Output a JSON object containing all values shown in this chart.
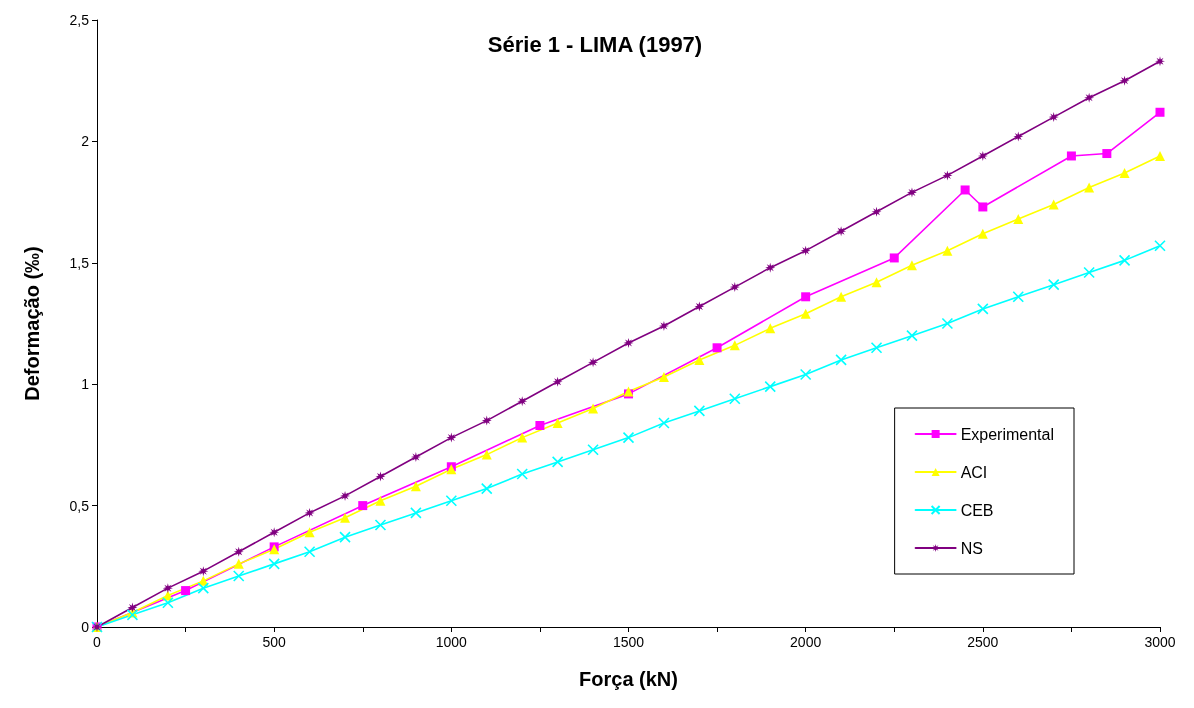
{
  "chart_data": {
    "type": "line",
    "title": "Série 1 - LIMA (1997)",
    "xlabel": "Força (kN)",
    "ylabel": "Deformação (‰)",
    "xlim": [
      0,
      3000
    ],
    "xticks": [
      0,
      {
        "value": 250,
        "label": null
      },
      500,
      {
        "value": 750,
        "label": null
      },
      1000,
      {
        "value": 1250,
        "label": null
      },
      1500,
      {
        "value": 1750,
        "label": null
      },
      2000,
      {
        "value": 2250,
        "label": null
      },
      2500,
      {
        "value": 2750,
        "label": null
      },
      3000
    ],
    "ylim": [
      0,
      2.5
    ],
    "yticks": [
      0,
      {
        "value": 0.5,
        "label": "0,5"
      },
      1,
      {
        "value": 1.5,
        "label": "1,5"
      },
      2,
      {
        "value": 2.5,
        "label": "2,5"
      }
    ],
    "grid": false,
    "legend": "right",
    "line_style": "solid",
    "series": [
      {
        "name": "Experimental",
        "color": "#ff00ff",
        "marker": "square",
        "x": [
          0,
          250,
          500,
          750,
          1000,
          1250,
          1500,
          1750,
          2000,
          2250,
          2450,
          2500,
          2750,
          2850,
          3000
        ],
        "values": [
          0,
          0.15,
          0.33,
          0.5,
          0.66,
          0.83,
          0.96,
          1.15,
          1.36,
          1.52,
          1.8,
          1.73,
          1.94,
          1.95,
          2.12
        ]
      },
      {
        "name": "ACI",
        "color": "#ffff00",
        "marker": "triangle",
        "x": [
          0,
          100,
          200,
          300,
          400,
          500,
          600,
          700,
          800,
          900,
          1000,
          1100,
          1200,
          1300,
          1400,
          1500,
          1600,
          1700,
          1800,
          1900,
          2000,
          2100,
          2200,
          2300,
          2400,
          2500,
          2600,
          2700,
          2800,
          2900,
          3000
        ],
        "values": [
          0,
          0.06,
          0.13,
          0.19,
          0.26,
          0.32,
          0.39,
          0.45,
          0.52,
          0.58,
          0.65,
          0.71,
          0.78,
          0.84,
          0.9,
          0.97,
          1.03,
          1.1,
          1.16,
          1.23,
          1.29,
          1.36,
          1.42,
          1.49,
          1.55,
          1.62,
          1.68,
          1.74,
          1.81,
          1.87,
          1.94
        ]
      },
      {
        "name": "CEB",
        "color": "#00ffff",
        "marker": "cross",
        "x": [
          0,
          100,
          200,
          300,
          400,
          500,
          600,
          700,
          800,
          900,
          1000,
          1100,
          1200,
          1300,
          1400,
          1500,
          1600,
          1700,
          1800,
          1900,
          2000,
          2100,
          2200,
          2300,
          2400,
          2500,
          2600,
          2700,
          2800,
          2900,
          3000
        ],
        "values": [
          0,
          0.05,
          0.1,
          0.16,
          0.21,
          0.26,
          0.31,
          0.37,
          0.42,
          0.47,
          0.52,
          0.57,
          0.63,
          0.68,
          0.73,
          0.78,
          0.84,
          0.89,
          0.94,
          0.99,
          1.04,
          1.1,
          1.15,
          1.2,
          1.25,
          1.31,
          1.36,
          1.41,
          1.46,
          1.51,
          1.57
        ]
      },
      {
        "name": "NS",
        "color": "#800080",
        "marker": "star",
        "x": [
          0,
          100,
          200,
          300,
          400,
          500,
          600,
          700,
          800,
          900,
          1000,
          1100,
          1200,
          1300,
          1400,
          1500,
          1600,
          1700,
          1800,
          1900,
          2000,
          2100,
          2200,
          2300,
          2400,
          2500,
          2600,
          2700,
          2800,
          2900,
          3000
        ],
        "values": [
          0,
          0.08,
          0.16,
          0.23,
          0.31,
          0.39,
          0.47,
          0.54,
          0.62,
          0.7,
          0.78,
          0.85,
          0.93,
          1.01,
          1.09,
          1.17,
          1.24,
          1.32,
          1.4,
          1.48,
          1.55,
          1.63,
          1.71,
          1.79,
          1.86,
          1.94,
          2.02,
          2.1,
          2.18,
          2.25,
          2.33
        ]
      }
    ]
  }
}
